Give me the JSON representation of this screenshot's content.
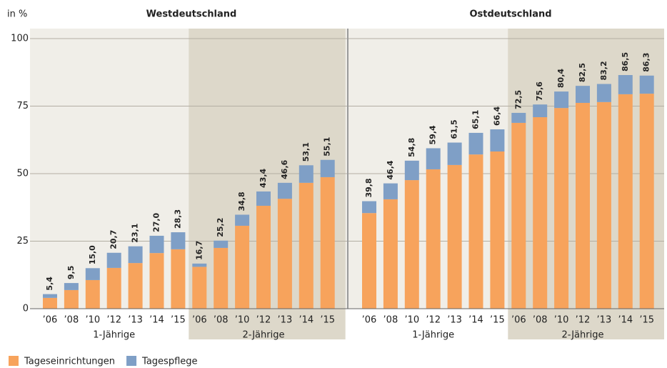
{
  "chart_data": {
    "type": "bar",
    "stacked": true,
    "ylabel": "in %",
    "ylim": [
      0,
      100
    ],
    "yticks": [
      0,
      25,
      50,
      75,
      100
    ],
    "grid": true,
    "legend": [
      {
        "name": "Tageseinrichtungen",
        "color": "#f7a35c"
      },
      {
        "name": "Tagespflege",
        "color": "#7f9fc6"
      }
    ],
    "panels": [
      {
        "title": "Westdeutschland",
        "groups": [
          {
            "label": "1-Jährige",
            "categories": [
              "’06",
              "’08",
              "’10",
              "’12",
              "’13",
              "’14",
              "’15"
            ],
            "series": [
              {
                "values": [
                  4.0,
                  6.9,
                  10.6,
                  15.1,
                  16.9,
                  20.6,
                  22.0
                ]
              },
              {
                "values": [
                  1.4,
                  2.6,
                  4.4,
                  5.6,
                  6.2,
                  6.4,
                  6.3
                ]
              }
            ],
            "totals": [
              5.4,
              9.5,
              15.0,
              20.7,
              23.1,
              27.0,
              28.3
            ],
            "total_labels": [
              "5,4",
              "9,5",
              "15,0",
              "20,7",
              "23,1",
              "27,0",
              "28,3"
            ]
          },
          {
            "label": "2-Jährige",
            "categories": [
              "’06",
              "’08",
              "’10",
              "’12",
              "’13",
              "’14",
              "’15"
            ],
            "series": [
              {
                "values": [
                  15.5,
                  22.5,
                  30.7,
                  38.1,
                  40.7,
                  46.6,
                  48.7
                ]
              },
              {
                "values": [
                  1.2,
                  2.7,
                  4.1,
                  5.3,
                  5.9,
                  6.5,
                  6.4
                ]
              }
            ],
            "totals": [
              16.7,
              25.2,
              34.8,
              43.4,
              46.6,
              53.1,
              55.1
            ],
            "total_labels": [
              "16,7",
              "25,2",
              "34,8",
              "43,4",
              "46,6",
              "53,1",
              "55,1"
            ]
          }
        ]
      },
      {
        "title": "Ostdeutschland",
        "groups": [
          {
            "label": "1-Jährige",
            "categories": [
              "’06",
              "’08",
              "’10",
              "’12",
              "’13",
              "’14",
              "’15"
            ],
            "series": [
              {
                "values": [
                  35.4,
                  40.5,
                  47.6,
                  51.6,
                  53.2,
                  57.1,
                  58.2
                ]
              },
              {
                "values": [
                  4.4,
                  5.9,
                  7.2,
                  7.8,
                  8.3,
                  8.0,
                  8.2
                ]
              }
            ],
            "totals": [
              39.8,
              46.4,
              54.8,
              59.4,
              61.5,
              65.1,
              66.4
            ],
            "total_labels": [
              "39,8",
              "46,4",
              "54,8",
              "59,4",
              "61,5",
              "65,1",
              "66,4"
            ]
          },
          {
            "label": "2-Jährige",
            "categories": [
              "’06",
              "’08",
              "’10",
              "’12",
              "’13",
              "’14",
              "’15"
            ],
            "series": [
              {
                "values": [
                  68.8,
                  70.9,
                  74.3,
                  76.2,
                  76.5,
                  79.4,
                  79.6
                ]
              },
              {
                "values": [
                  3.7,
                  4.7,
                  6.1,
                  6.3,
                  6.7,
                  7.1,
                  6.7
                ]
              }
            ],
            "totals": [
              72.5,
              75.6,
              80.4,
              82.5,
              83.2,
              86.5,
              86.3
            ],
            "total_labels": [
              "72,5",
              "75,6",
              "80,4",
              "82,5",
              "83,2",
              "86,5",
              "86,3"
            ]
          }
        ]
      }
    ]
  }
}
